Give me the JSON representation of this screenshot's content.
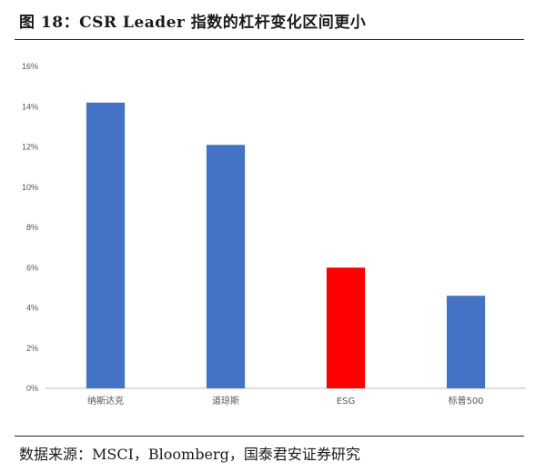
{
  "figure": {
    "title": "图 18：CSR Leader 指数的杠杆变化区间更小",
    "source": "数据来源：MSCI，Bloomberg，国泰君安证券研究"
  },
  "chart_data": {
    "type": "bar",
    "categories": [
      "纳斯达克",
      "道琼斯",
      "ESG",
      "标普500"
    ],
    "values": [
      14.2,
      12.1,
      6.0,
      4.6
    ],
    "value_unit": "%",
    "colors": [
      "#4472C4",
      "#4472C4",
      "#FF0000",
      "#4472C4"
    ],
    "ylim": [
      0,
      16
    ],
    "yticks": [
      0,
      2,
      4,
      6,
      8,
      10,
      12,
      14,
      16
    ],
    "ytick_labels": [
      "0%",
      "2%",
      "4%",
      "6%",
      "8%",
      "10%",
      "12%",
      "14%",
      "16%"
    ],
    "grid": false,
    "legend": false
  }
}
